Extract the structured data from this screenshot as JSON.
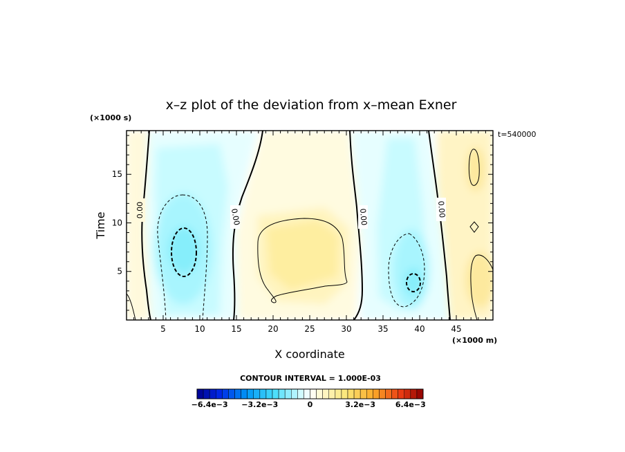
{
  "chart_data": {
    "type": "heatmap",
    "title": "x–z plot of the deviation from x–mean Exner",
    "xlabel": "X coordinate",
    "ylabel": "Time",
    "x_unit_label": "(×1000 m)",
    "y_unit_label": "(×1000 s)",
    "time_stamp": "t=540000",
    "xlim": [
      0,
      50
    ],
    "ylim": [
      0,
      19.5
    ],
    "x_ticks": [
      5,
      10,
      15,
      20,
      25,
      30,
      35,
      40,
      45
    ],
    "x_tick_labels": [
      "5",
      "10",
      "15",
      "20",
      "25",
      "30",
      "35",
      "40",
      "45"
    ],
    "y_ticks": [
      5,
      10,
      15
    ],
    "y_tick_labels": [
      "5",
      "10",
      "15"
    ],
    "contour_labels": [
      "0.00",
      "0.00",
      "0.00",
      "0.00"
    ],
    "contour_interval_label": "CONTOUR INTERVAL = 1.000E-03",
    "colorbar": {
      "min": -0.0072,
      "max": 0.0072,
      "tick_values": [
        -0.0064,
        -0.0032,
        0,
        0.0032,
        0.0064
      ],
      "tick_labels": [
        "−6.4e−3",
        "−3.2e−3",
        "0",
        "3.2e−3",
        "6.4e−3"
      ]
    },
    "features": [
      {
        "kind": "minimum",
        "x": 8,
        "y": 7.5,
        "value": -0.0035
      },
      {
        "kind": "maximum",
        "x": 24,
        "y": 7,
        "value": 0.0022
      },
      {
        "kind": "minimum",
        "x": 39,
        "y": 4,
        "value": -0.0033
      },
      {
        "kind": "maximum",
        "x": 47,
        "y": 7,
        "value": 0.0012
      }
    ]
  }
}
